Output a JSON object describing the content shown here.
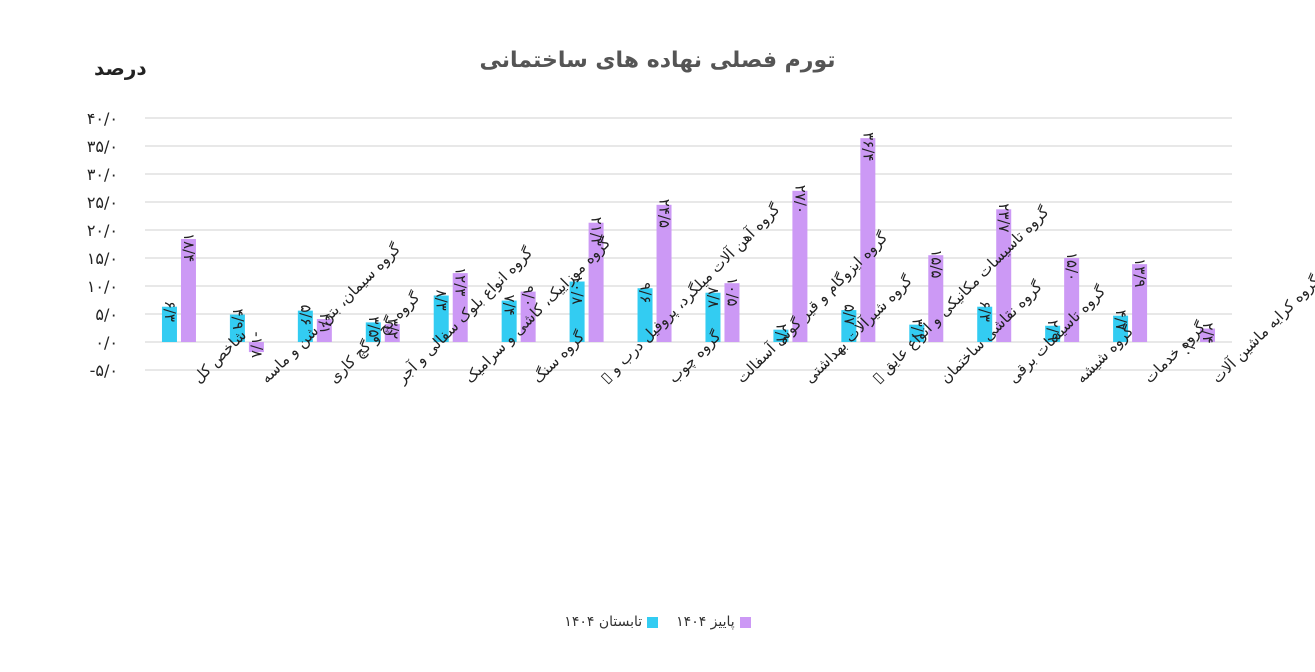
{
  "chart_data": {
    "type": "bar",
    "title": "تورم فصلی نهاده های ساختمانی",
    "ylabel": "درصد",
    "ylim": [
      -5,
      40
    ],
    "yticks": [
      {
        "value": 40,
        "label": "۴۰/۰"
      },
      {
        "value": 35,
        "label": "۳۵/۰"
      },
      {
        "value": 30,
        "label": "۳۰/۰"
      },
      {
        "value": 25,
        "label": "۲۵/۰"
      },
      {
        "value": 20,
        "label": "۲۰/۰"
      },
      {
        "value": 15,
        "label": "۱۵/۰"
      },
      {
        "value": 10,
        "label": "۱۰/۰"
      },
      {
        "value": 5,
        "label": "۵/۰"
      },
      {
        "value": 0,
        "label": "۰/۰"
      },
      {
        "value": -5,
        "label": "-۵/۰"
      }
    ],
    "grid": true,
    "legend_position": "bottom",
    "categories": [
      "شاخص کل",
      "گروه سیمان، بتن، شن و ماسه",
      "گروه گچ و گچ کاری",
      "گروه انواع بلوک سفالی و آجر",
      "گروه موزاییک، کاشی و سرامیک",
      "گروه سنگ",
      "گروه آهن آلات میلگرد، پروفیل درب و ▯",
      "گروه چوب",
      "گروه ایزوگام و قیر گونی آسفالت",
      "گروه شیرآلات بهداشتی",
      "گروه تاسیسات مکانیکی و انواع عایق ▯",
      "گروه نقاشی ساختمان",
      "گروه تاسیسات برقی",
      "گروه شیشه",
      "گروه خدمات",
      "گروه کرایه ماشین آلات"
    ],
    "series": [
      {
        "name": "تابستان ۱۴۰۴",
        "color": "#33CCF2",
        "values": [
          6.3,
          4.9,
          5.6,
          3.5,
          8.3,
          7.4,
          10.8,
          9.6,
          8.8,
          2.2,
          5.7,
          3.1,
          6.3,
          2.9,
          4.7,
          0.0
        ],
        "labels": [
          "۶/۳",
          "۴/۹",
          "۵/۶",
          "۳/۵",
          "۸/۳",
          "۷/۴",
          "۱۰/۸",
          "۹/۶",
          "۸/۸",
          "۲/۲",
          "۵/۷",
          "۳/۱",
          "۶/۳",
          "۲/۹",
          "۴/۷",
          "۰/۰"
        ]
      },
      {
        "name": "پاییز ۱۴۰۴",
        "color": "#CC99F5",
        "values": [
          18.4,
          -1.8,
          4.1,
          3.2,
          12.3,
          9.0,
          21.3,
          24.5,
          10.5,
          27.0,
          36.4,
          15.5,
          23.7,
          15.0,
          13.9,
          2.4
        ],
        "labels": [
          "۱۸/۴",
          "-۱/۸",
          "۴/۱",
          "۳/۲",
          "۱۲/۳",
          "۹/۰",
          "۲۱/۳",
          "۲۴/۵",
          "۱۰/۵",
          "۲۷/۰",
          "۳۶/۴",
          "۱۵/۵",
          "۲۳/۷",
          "۱۵/۰",
          "۱۳/۹",
          "۲/۴"
        ]
      }
    ]
  }
}
